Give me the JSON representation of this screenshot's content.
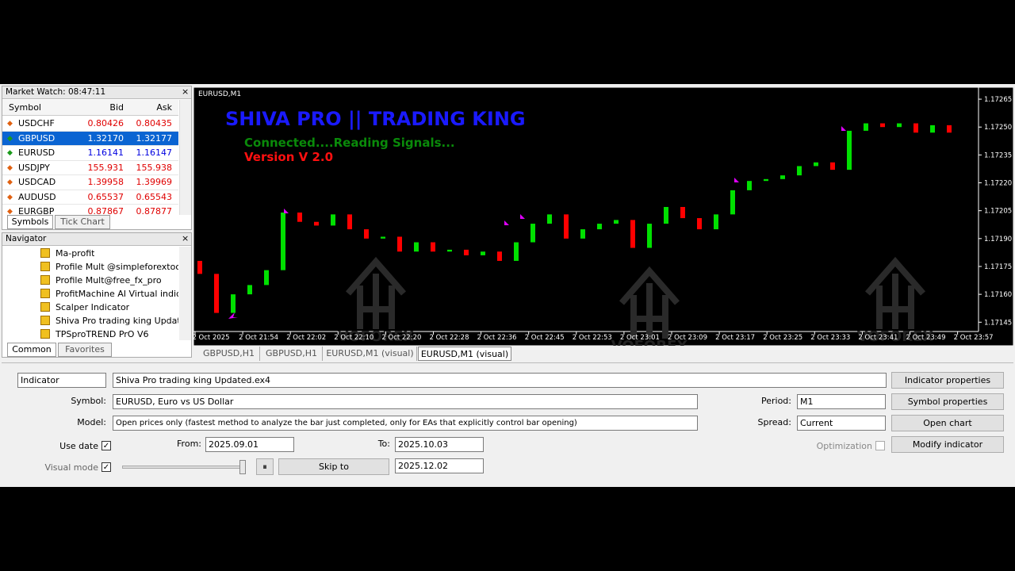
{
  "market_watch": {
    "title": "Market Watch: 08:47:11",
    "columns": [
      "Symbol",
      "Bid",
      "Ask"
    ],
    "rows": [
      [
        "USDCHF",
        "0.80426",
        "0.80435"
      ],
      [
        "GBPUSD",
        "1.32170",
        "1.32177"
      ],
      [
        "EURUSD",
        "1.16141",
        "1.16147"
      ],
      [
        "USDJPY",
        "155.931",
        "155.938"
      ],
      [
        "USDCAD",
        "1.39958",
        "1.39969"
      ],
      [
        "AUDUSD",
        "0.65537",
        "0.65543"
      ],
      [
        "EURGBP",
        "0.87867",
        "0.87877"
      ]
    ],
    "tabs": [
      "Symbols",
      "Tick Chart"
    ]
  },
  "navigator": {
    "title": "Navigator",
    "items": [
      "Ma-profit",
      "Profile Mult @simpleforextools",
      "Profile Mult@free_fx_pro",
      "ProfitMachine AI Virtual indicat",
      "Scalper Indicator",
      "Shiva Pro trading king Updated",
      "TPSproTREND PrO V6"
    ],
    "tabs": [
      "Common",
      "Favorites"
    ]
  },
  "chart": {
    "type": "candlestick",
    "symbol_label": "EURUSD,M1",
    "title": "SHIVA PRO || TRADING KING",
    "status": "Connected....Reading Signals...",
    "version": "Version V 2.0",
    "watermark": "VOFOREX",
    "open": [
      1.17178,
      1.17171,
      1.1715,
      1.1716,
      1.17165,
      1.17173,
      1.17204,
      1.17199,
      1.17197,
      1.17203,
      1.17195,
      1.1719,
      1.17191,
      1.17183,
      1.17188,
      1.17183,
      1.17184,
      1.17181,
      1.17183,
      1.17178,
      1.17188,
      1.17198,
      1.17203,
      1.1719,
      1.17195,
      1.17198,
      1.172,
      1.17185,
      1.17198,
      1.17207,
      1.17201,
      1.17195,
      1.17203,
      1.17216,
      1.17221,
      1.17222,
      1.17224,
      1.17229,
      1.17231,
      1.17227,
      1.17248,
      1.17252,
      1.1725,
      1.17252,
      1.17247,
      1.17251
    ],
    "close": [
      1.17171,
      1.1715,
      1.1716,
      1.17165,
      1.17173,
      1.17204,
      1.17199,
      1.17197,
      1.17203,
      1.17195,
      1.1719,
      1.17191,
      1.17183,
      1.17188,
      1.17183,
      1.17184,
      1.17181,
      1.17183,
      1.17178,
      1.17188,
      1.17198,
      1.17203,
      1.1719,
      1.17195,
      1.17198,
      1.172,
      1.17185,
      1.17198,
      1.17207,
      1.17201,
      1.17195,
      1.17203,
      1.17216,
      1.17221,
      1.17222,
      1.17224,
      1.17229,
      1.17231,
      1.17227,
      1.17248,
      1.17252,
      1.1725,
      1.17252,
      1.17247,
      1.17251,
      1.17247
    ],
    "ylim": [
      1.1714,
      1.17271
    ],
    "yticks": [
      1.17265,
      {
        "value": 1.1725,
        "label": "1.17250"
      },
      1.17235,
      {
        "value": 1.1722,
        "label": "1.17220"
      },
      1.17205,
      {
        "value": 1.1719,
        "label": "1.17190"
      },
      1.17175,
      {
        "value": 1.1716,
        "label": "1.17160"
      },
      1.17145
    ],
    "x_labels": [
      "2 Oct 2025",
      "2 Oct 21:54",
      "2 Oct 22:02",
      "2 Oct 22:10",
      "2 Oct 22:20",
      "2 Oct 22:28",
      "2 Oct 22:36",
      "2 Oct 22:45",
      "2 Oct 22:53",
      "2 Oct 23:01",
      "2 Oct 23:09",
      "2 Oct 23:17",
      "2 Oct 23:25",
      "2 Oct 23:33",
      "2 Oct 23:41",
      "2 Oct 23:49",
      "2 Oct 23:57"
    ],
    "up_color": "#00e000",
    "down_color": "#ff0000"
  },
  "chart_tabs": [
    "GBPUSD,H1",
    "GBPUSD,H1",
    "EURUSD,M1 (visual)",
    "EURUSD,M1 (visual)"
  ],
  "tester": {
    "mode": "Indicator",
    "file": "Shiva Pro trading king Updated.ex4",
    "indicator_properties": "Indicator properties",
    "symbol_label": "Symbol:",
    "symbol": "EURUSD, Euro vs US Dollar",
    "period_label": "Period:",
    "period": "M1",
    "symbol_properties": "Symbol properties",
    "model_label": "Model:",
    "model": "Open prices only (fastest method to analyze the bar just completed, only for EAs that explicitly control bar opening)",
    "spread_label": "Spread:",
    "spread": "Current",
    "open_chart": "Open chart",
    "use_date": "Use date",
    "from_label": "From:",
    "from": "2025.09.01",
    "to_label": "To:",
    "to": "2025.10.03",
    "optimization": "Optimization",
    "modify_indicator": "Modify indicator",
    "visual_mode": "Visual mode",
    "skip_to": "Skip to",
    "skip_date": "2025.12.02"
  }
}
